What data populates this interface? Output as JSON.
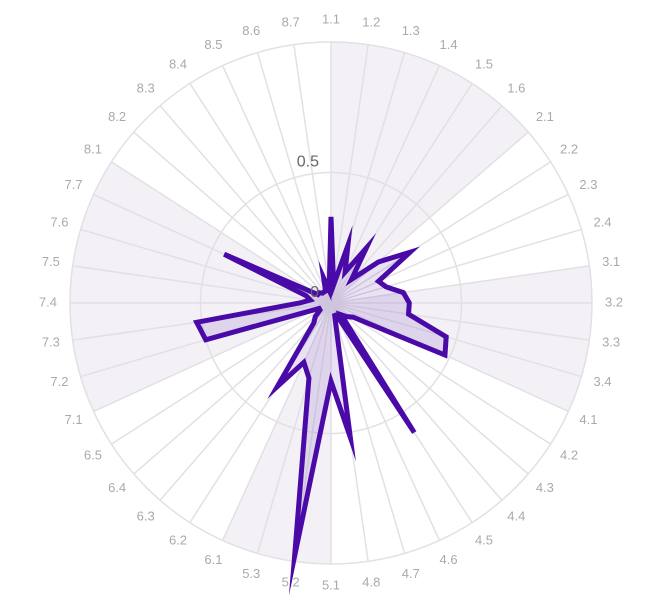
{
  "chart_data": {
    "type": "radar",
    "categories": [
      "1.1",
      "1.2",
      "1.3",
      "1.4",
      "1.5",
      "1.6",
      "2.1",
      "2.2",
      "2.3",
      "2.4",
      "3.1",
      "3.2",
      "3.3",
      "3.4",
      "4.1",
      "4.2",
      "4.3",
      "4.4",
      "4.5",
      "4.6",
      "4.7",
      "4.8",
      "5.1",
      "5.2",
      "5.3",
      "6.1",
      "6.2",
      "6.3",
      "6.4",
      "6.5",
      "7.1",
      "7.2",
      "7.3",
      "7.4",
      "7.5",
      "7.6",
      "7.7",
      "8.1",
      "8.2",
      "8.3",
      "8.4",
      "8.5",
      "8.6",
      "8.7"
    ],
    "series": [
      {
        "color": "#4a0aa8",
        "values": [
          0.33,
          0.07,
          0.23,
          0.13,
          0.25,
          0.12,
          0.24,
          0.36,
          0.2,
          0.22,
          0.28,
          0.3,
          0.3,
          0.46,
          0.48,
          0.1,
          0.08,
          0.06,
          0.59,
          0.05,
          0.05,
          0.52,
          0.3,
          0.98,
          0.3,
          0.25,
          0.38,
          0.1,
          0.08,
          0.05,
          0.05,
          0.5,
          0.52,
          0.12,
          0.08,
          0.1,
          0.45,
          0.06,
          0.06,
          0.05,
          0.05,
          0.05,
          0.1,
          0.05
        ]
      }
    ],
    "ylim": [
      0,
      1
    ],
    "yticks": [
      0,
      0.5
    ],
    "grid": true
  }
}
